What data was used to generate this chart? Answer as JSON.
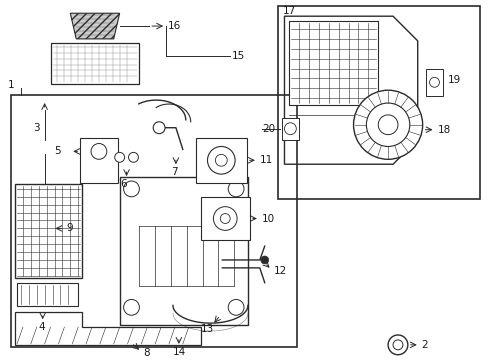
{
  "bg_color": "#ffffff",
  "line_color": "#2a2a2a",
  "label_color": "#1a1a1a",
  "fig_width": 4.89,
  "fig_height": 3.6,
  "dpi": 100
}
